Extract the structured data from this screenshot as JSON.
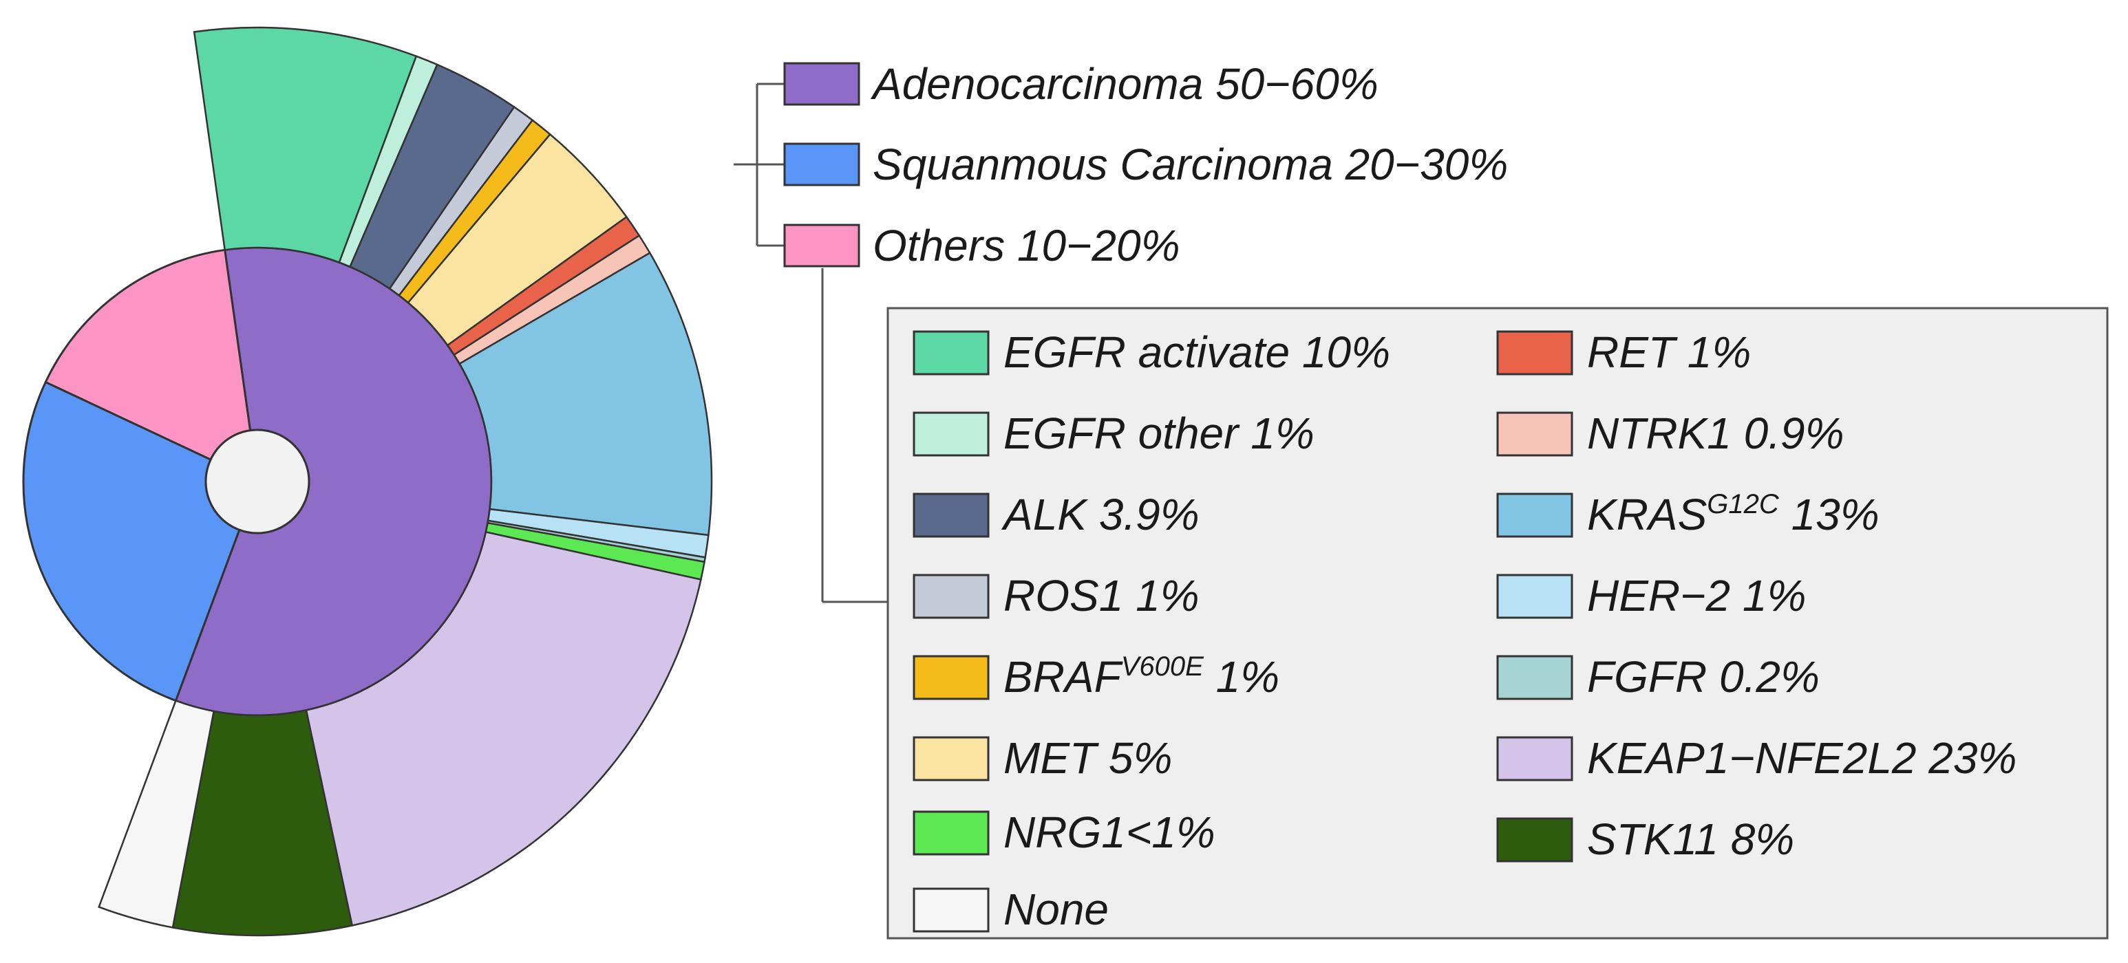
{
  "chart_data": {
    "type": "sunburst",
    "title": "",
    "histology": [
      {
        "label": "Adenocarcinoma 50−60%",
        "value": 55,
        "color": "#8f6cc7"
      },
      {
        "label": "Squanmous Carcinoma 20−30%",
        "value": 25,
        "color": "#5996f7"
      },
      {
        "label": "Others 10−20%",
        "value": 15,
        "color": "#fc94c4"
      }
    ],
    "mutations": [
      {
        "label": "EGFR activate 10%",
        "name": "EGFR activate",
        "value": 10,
        "color": "#5bd8a6"
      },
      {
        "label": "EGFR other 1%",
        "name": "EGFR other",
        "value": 1,
        "color": "#bdefdc"
      },
      {
        "label": "ALK 3.9%",
        "name": "ALK",
        "value": 3.9,
        "color": "#5a6a8c"
      },
      {
        "label": "ROS1 1%",
        "name": "ROS1",
        "value": 1,
        "color": "#c5cad8"
      },
      {
        "label": "BRAF",
        "sup": "V600E",
        "suffix": " 1%",
        "name": "BRAF V600E",
        "value": 1,
        "color": "#f5bb1a"
      },
      {
        "label": "MET 5%",
        "name": "MET",
        "value": 5,
        "color": "#fbe3a1"
      },
      {
        "label": "RET 1%",
        "name": "RET",
        "value": 1,
        "color": "#e8634a"
      },
      {
        "label": "NTRK1 0.9%",
        "name": "NTRK1",
        "value": 0.9,
        "color": "#f7c4b7"
      },
      {
        "label": "KRAS",
        "sup": "G12C",
        "suffix": " 13%",
        "name": "KRAS G12C",
        "value": 13,
        "color": "#82c4e3"
      },
      {
        "label": "HER−2 1%",
        "name": "HER-2",
        "value": 1,
        "color": "#b7e1f5"
      },
      {
        "label": "FGFR 0.2%",
        "name": "FGFR",
        "value": 0.2,
        "color": "#a6d4d4"
      },
      {
        "label": "NRG1<1%",
        "name": "NRG1",
        "value": 0.8,
        "color": "#5ce852"
      },
      {
        "label": "KEAP1−NFE2L2 23%",
        "name": "KEAP1-NFE2L2",
        "value": 23,
        "color": "#d4c4ea"
      },
      {
        "label": "STK11 8%",
        "name": "STK11",
        "value": 8,
        "color": "#2e5c0d"
      },
      {
        "label": "None",
        "name": "None",
        "value": 3.4,
        "color": "#f6f6f6"
      }
    ],
    "legend_left": [
      "EGFR activate 10%",
      "EGFR other 1%",
      "ALK 3.9%",
      "ROS1 1%",
      "BRAF",
      "MET 5%",
      "NRG1<1%",
      "None"
    ],
    "legend_right": [
      "RET 1%",
      "NTRK1 0.9%",
      "KRAS",
      "HER−2 1%",
      "FGFR 0.2%",
      "KEAP1−NFE2L2 23%",
      "STK11 8%"
    ]
  }
}
